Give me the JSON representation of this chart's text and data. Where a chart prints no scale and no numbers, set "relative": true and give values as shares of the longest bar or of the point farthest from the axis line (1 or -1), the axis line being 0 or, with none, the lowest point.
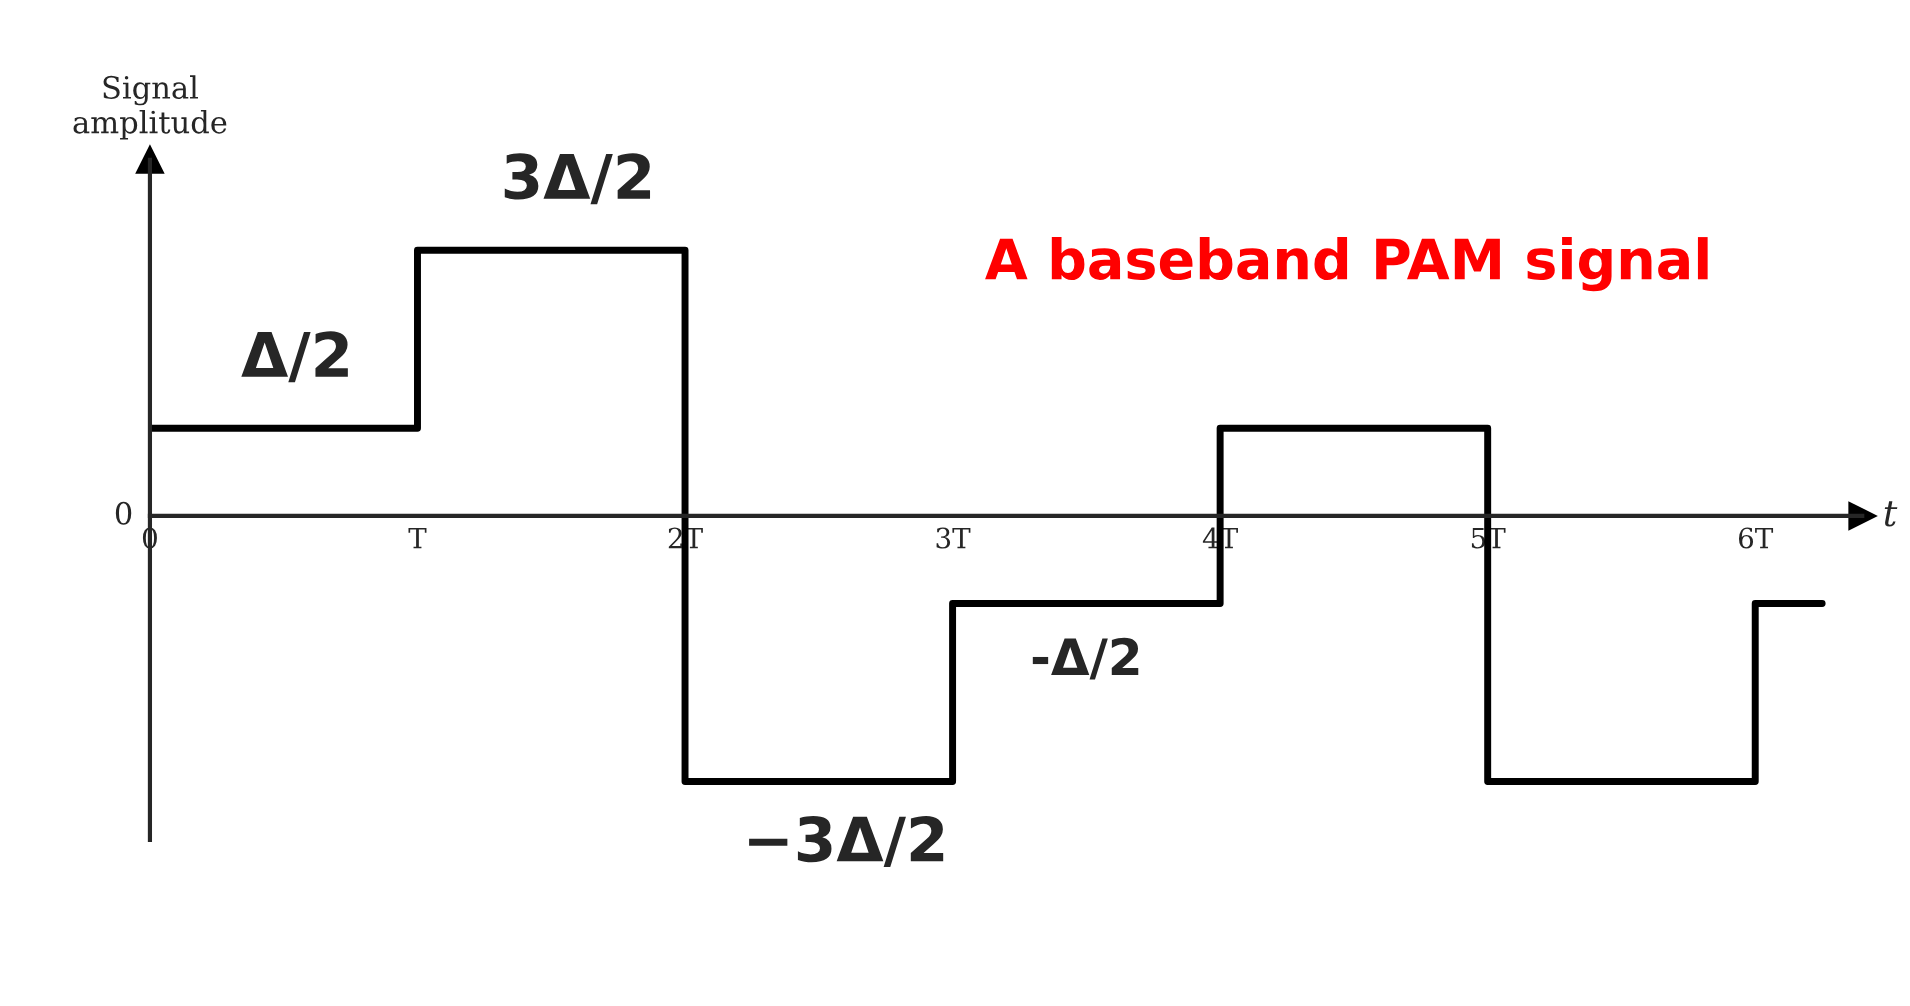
{
  "chart_data": {
    "type": "step",
    "title": "A baseband PAM signal",
    "xlabel": "t",
    "ylabel": "Signal\namplitude",
    "relative": true,
    "x": [
      0,
      1,
      2,
      3,
      4,
      5,
      6,
      6.25
    ],
    "series": [
      {
        "color": "#000000",
        "values": [
          0.33,
          1,
          -1,
          -0.33,
          0.33,
          -1,
          -0.33,
          -0.33
        ]
      }
    ],
    "xlim": [
      0,
      6.4
    ],
    "xticks": [
      0,
      {
        "value": 1,
        "label": "T"
      },
      {
        "value": 2,
        "label": "2T"
      },
      {
        "value": 3,
        "label": "3T"
      },
      {
        "value": 4,
        "label": "4T"
      },
      {
        "value": 5,
        "label": "5T"
      },
      {
        "value": 6,
        "label": "6T"
      }
    ],
    "annotations": [
      "0",
      {
        "text": "Δ/2",
        "x": 0.55,
        "y": 0.33
      },
      {
        "text": "3Δ/2",
        "x": 1.6,
        "y": 1
      },
      {
        "text": "−3Δ/2",
        "x": 2.6,
        "y": -1
      },
      {
        "text": "-Δ/2",
        "x": 3.5,
        "y": -0.33
      }
    ],
    "grid": false,
    "legend": false,
    "marker": "none",
    "line_style": "solid"
  }
}
